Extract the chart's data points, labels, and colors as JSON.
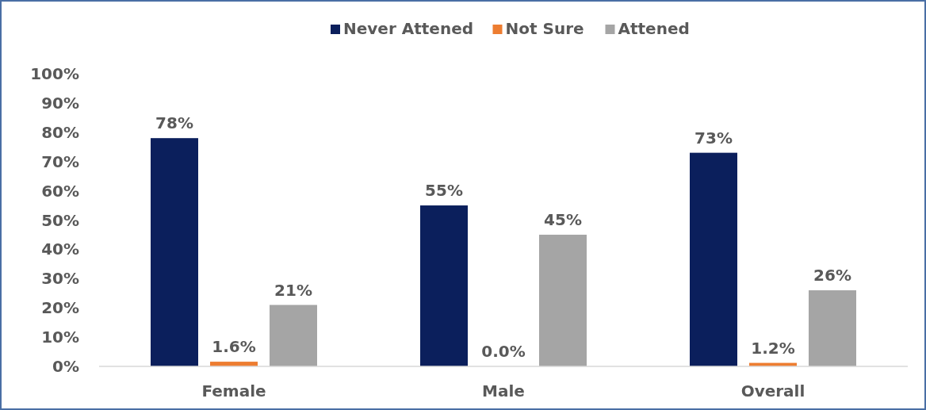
{
  "chart_data": {
    "type": "bar",
    "categories": [
      "Female",
      "Male",
      "Overall"
    ],
    "series": [
      {
        "name": "Never Attened",
        "color": "#0b1f5c",
        "values": [
          78,
          55,
          73
        ],
        "value_labels": [
          "78%",
          "55%",
          "73%"
        ]
      },
      {
        "name": "Not Sure",
        "color": "#ed7d31",
        "values": [
          1.6,
          0.0,
          1.2
        ],
        "value_labels": [
          "1.6%",
          "0.0%",
          "1.2%"
        ]
      },
      {
        "name": "Attened",
        "color": "#a5a5a5",
        "values": [
          21,
          45,
          26
        ],
        "value_labels": [
          "21%",
          "45%",
          "26%"
        ]
      }
    ],
    "ylim": [
      0,
      100
    ],
    "yticks": [
      {
        "value": 0,
        "label": "0%"
      },
      {
        "value": 10,
        "label": "10%"
      },
      {
        "value": 20,
        "label": "20%"
      },
      {
        "value": 30,
        "label": "30%"
      },
      {
        "value": 40,
        "label": "40%"
      },
      {
        "value": 50,
        "label": "50%"
      },
      {
        "value": 60,
        "label": "60%"
      },
      {
        "value": 70,
        "label": "70%"
      },
      {
        "value": 80,
        "label": "80%"
      },
      {
        "value": 90,
        "label": "90%"
      },
      {
        "value": 100,
        "label": "100%"
      }
    ],
    "grid": false,
    "legend": "top"
  }
}
